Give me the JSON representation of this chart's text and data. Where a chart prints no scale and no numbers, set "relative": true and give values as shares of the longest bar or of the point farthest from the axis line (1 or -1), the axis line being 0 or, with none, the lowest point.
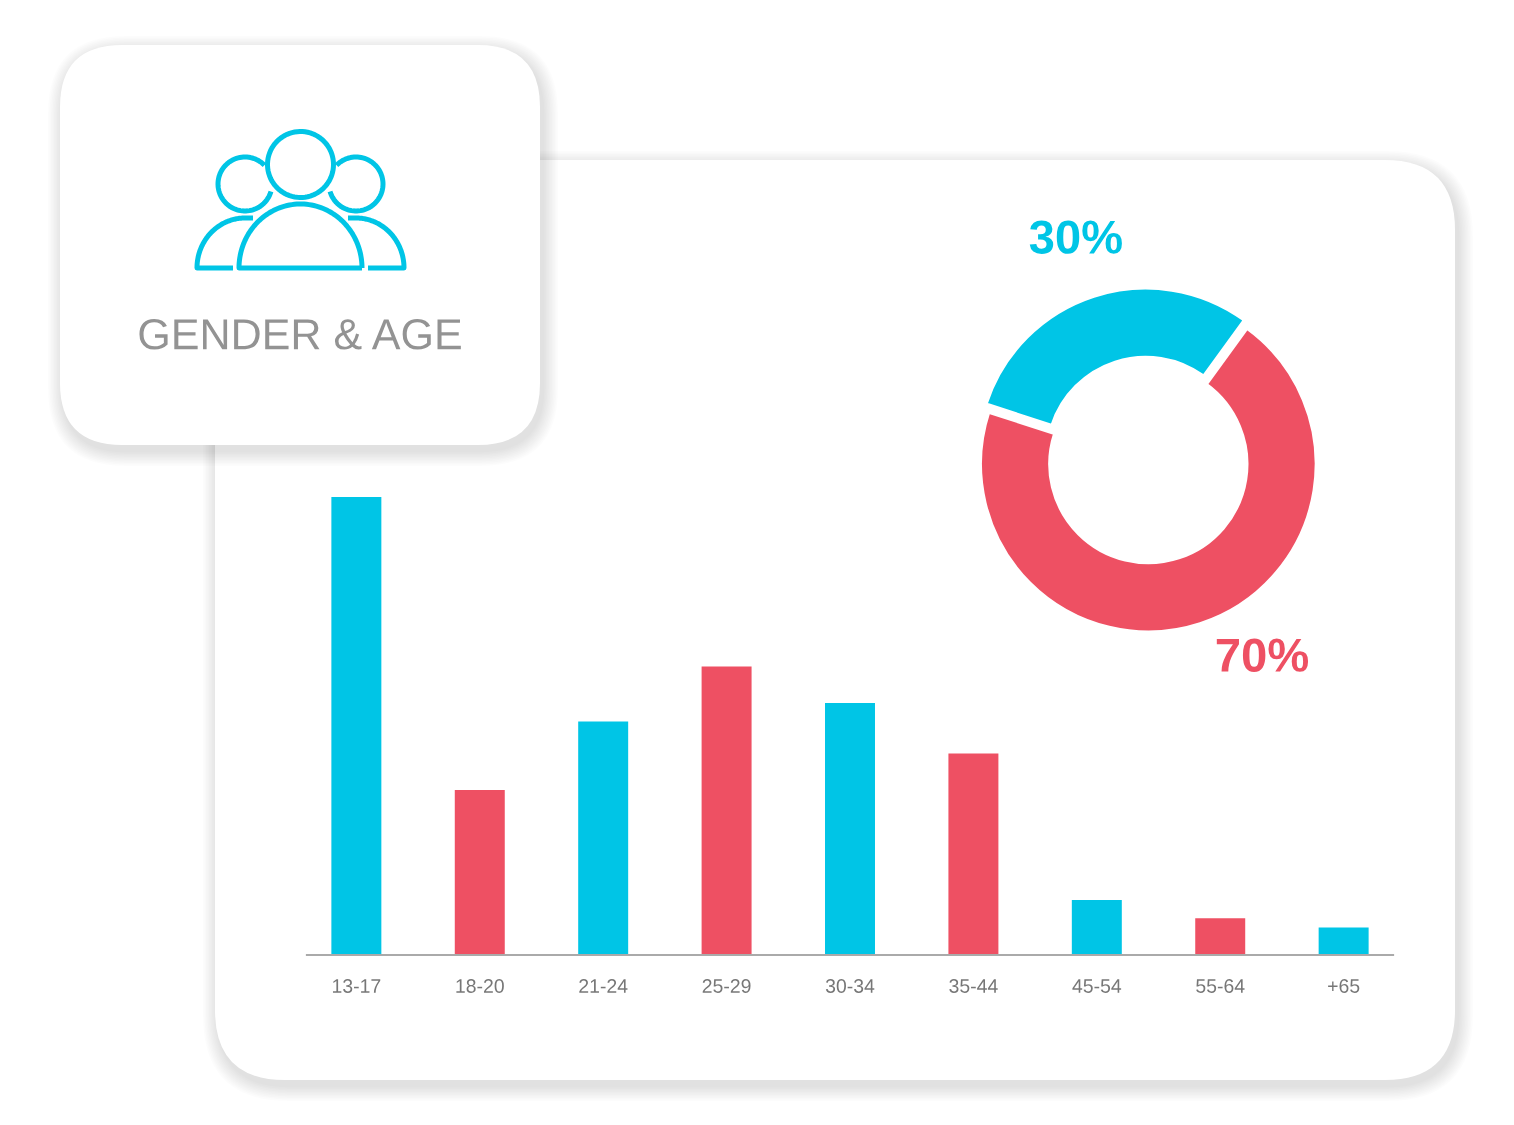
{
  "chart_data": [
    {
      "type": "other",
      "title": "GENDER & AGE"
    },
    {
      "type": "donut",
      "categories": [
        null,
        null
      ],
      "values": [
        30,
        70
      ],
      "colors": [
        "#00c5e6",
        "#ee5063"
      ],
      "value_labels": [
        "30%",
        "70%"
      ]
    },
    {
      "type": "bar",
      "relative": true,
      "categories": [
        "13-17",
        "18-20",
        "21-24",
        "25-29",
        "30-34",
        "35-44",
        "45-54",
        "55-64",
        "+65"
      ],
      "values": [
        1,
        0.36,
        0.51,
        0.63,
        0.55,
        0.44,
        0.12,
        0.08,
        0.06
      ],
      "colors": [
        "#00c5e6",
        "#ee5063",
        "#00c5e6",
        "#ee5063",
        "#00c5e6",
        "#ee5063",
        "#00c5e6",
        "#ee5063",
        "#00c5e6"
      ],
      "tick_labels": "x"
    }
  ]
}
